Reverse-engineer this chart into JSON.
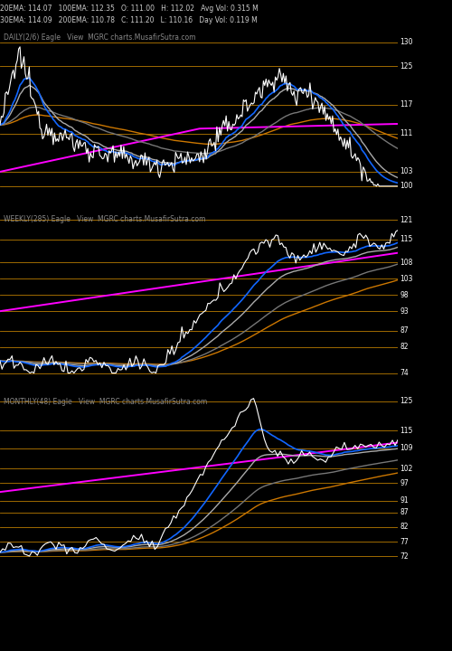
{
  "background_color": "#000000",
  "info_line1": "20EMA: 114.07   100EMA: 112.35   O: 111.00   H: 112.02   Avg Vol: 0.315 M",
  "info_line2": "30EMA: 114.09   200EMA: 110.78   C: 111.20   L: 110.16   Day Vol: 0.119 M",
  "panel1": {
    "label": "DAILY(2/6) Eagle   View  MGRC charts.MusafirSutra.com",
    "yticks": [
      100,
      103,
      111,
      117,
      125,
      130
    ],
    "ylim": [
      97,
      133
    ]
  },
  "panel2": {
    "label": "WEEKLY(285) Eagle   View  MGRC charts.MusafirSutra.com",
    "yticks": [
      74,
      82,
      87,
      93,
      98,
      103,
      108,
      115,
      121
    ],
    "ylim": [
      71,
      124
    ]
  },
  "panel3": {
    "label": "MONTHLY(48) Eagle   View  MGRC charts.MusafirSutra.com",
    "yticks": [
      72,
      77,
      82,
      87,
      91,
      97,
      102,
      109,
      115,
      125
    ],
    "ylim": [
      69,
      128
    ]
  },
  "grid_color": "#cc8800",
  "text_color": "#ffffff",
  "label_color": "#888888",
  "price_color": "#ffffff",
  "ema_blue": "#1166ff",
  "ema_gray1": "#aaaaaa",
  "ema_gray2": "#777777",
  "ema_orange": "#cc7700",
  "ema_magenta": "#ff00ff"
}
